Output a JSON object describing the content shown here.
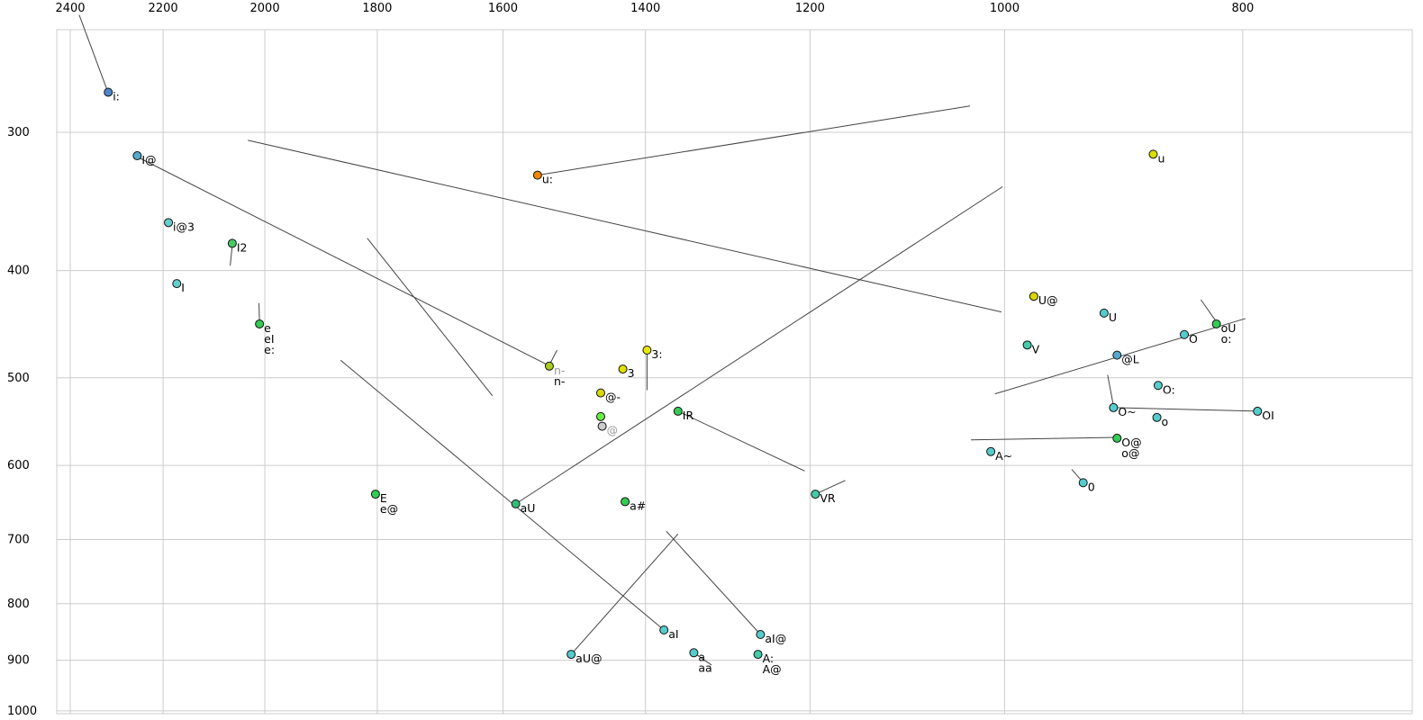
{
  "chart_data": {
    "type": "scatter",
    "title": "",
    "xlabel": "",
    "ylabel": "",
    "x_scale": "log",
    "y_scale": "log",
    "x_reversed": true,
    "y_increases_downward": true,
    "x_ticks": [
      2400,
      2200,
      2000,
      1800,
      1600,
      1400,
      1200,
      1000,
      800
    ],
    "y_ticks": [
      300,
      400,
      500,
      600,
      700,
      800,
      900,
      1000
    ],
    "x_range": [
      2431,
      683
    ],
    "y_range": [
      243,
      1005
    ],
    "grid": true,
    "grid_color": "#cccccc",
    "line_color": "#444444",
    "dot_outline_color": "#111111",
    "points": [
      {
        "f2": 2316,
        "f1": 276,
        "color": "#4d88cc",
        "labels": [
          {
            "t": "i:"
          }
        ]
      },
      {
        "f2": 2254,
        "f1": 315,
        "color": "#55aacc",
        "labels": [
          {
            "t": "I@"
          }
        ]
      },
      {
        "f2": 2189,
        "f1": 362,
        "color": "#66cccc",
        "labels": [
          {
            "t": "i@3"
          }
        ]
      },
      {
        "f2": 2062,
        "f1": 378,
        "color": "#44cc66",
        "labels": [
          {
            "t": "I2"
          }
        ]
      },
      {
        "f2": 2172,
        "f1": 411,
        "color": "#66cccc",
        "labels": [
          {
            "t": "I"
          }
        ]
      },
      {
        "f2": 2010,
        "f1": 447,
        "color": "#33cc55",
        "labels": [
          {
            "t": "e"
          },
          {
            "t": "eI"
          },
          {
            "t": "e:"
          }
        ]
      },
      {
        "f2": 1549,
        "f1": 328,
        "color": "#ee8800",
        "labels": [
          {
            "t": "u:"
          }
        ]
      },
      {
        "f2": 1532,
        "f1": 488,
        "color": "#aacc22",
        "labels": [
          {
            "t": "n-",
            "c": "#999999"
          },
          {
            "t": "n-"
          }
        ]
      },
      {
        "f2": 1430,
        "f1": 491,
        "color": "#e0e000",
        "labels": [
          {
            "t": "3"
          }
        ]
      },
      {
        "f2": 1398,
        "f1": 472,
        "color": "#e8e800",
        "labels": [
          {
            "t": "3:"
          }
        ]
      },
      {
        "f2": 1460,
        "f1": 516,
        "color": "#d8d800",
        "labels": [
          {
            "t": "@-"
          }
        ]
      },
      {
        "f2": 1460,
        "f1": 542,
        "color": "#66ee44",
        "labels": []
      },
      {
        "f2": 1458,
        "f1": 553,
        "color": "#cccccc",
        "labels": [
          {
            "t": "@",
            "c": "#999999"
          }
        ]
      },
      {
        "f2": 1358,
        "f1": 536,
        "color": "#33cc55",
        "labels": [
          {
            "t": "IR"
          }
        ]
      },
      {
        "f2": 1803,
        "f1": 637,
        "color": "#33cc55",
        "labels": [
          {
            "t": "E"
          },
          {
            "t": "e@"
          }
        ]
      },
      {
        "f2": 1581,
        "f1": 650,
        "color": "#33bb77",
        "labels": [
          {
            "t": "aU"
          }
        ]
      },
      {
        "f2": 1427,
        "f1": 647,
        "color": "#33cc55",
        "labels": [
          {
            "t": "a#"
          }
        ]
      },
      {
        "f2": 1194,
        "f1": 637,
        "color": "#44ccaa",
        "labels": [
          {
            "t": "VR"
          }
        ]
      },
      {
        "f2": 1376,
        "f1": 845,
        "color": "#55cccc",
        "labels": [
          {
            "t": "aI"
          }
        ]
      },
      {
        "f2": 1257,
        "f1": 853,
        "color": "#55cccc",
        "labels": [
          {
            "t": "aI@"
          }
        ]
      },
      {
        "f2": 1501,
        "f1": 889,
        "color": "#55cccc",
        "labels": [
          {
            "t": "aU@"
          }
        ]
      },
      {
        "f2": 1338,
        "f1": 886,
        "color": "#55cccc",
        "labels": [
          {
            "t": "a"
          },
          {
            "t": "aa"
          }
        ]
      },
      {
        "f2": 1260,
        "f1": 889,
        "color": "#44ccaa",
        "labels": [
          {
            "t": "A:"
          },
          {
            "t": "A@"
          }
        ]
      },
      {
        "f2": 973,
        "f1": 422,
        "color": "#d8d800",
        "labels": [
          {
            "t": "U@"
          }
        ]
      },
      {
        "f2": 911,
        "f1": 437,
        "color": "#55cccc",
        "labels": [
          {
            "t": "U"
          }
        ]
      },
      {
        "f2": 979,
        "f1": 467,
        "color": "#44ccaa",
        "labels": [
          {
            "t": "V"
          }
        ]
      },
      {
        "f2": 870,
        "f1": 314,
        "color": "#d8e000",
        "labels": [
          {
            "t": "u"
          }
        ]
      },
      {
        "f2": 820,
        "f1": 447,
        "color": "#33cc55",
        "labels": [
          {
            "t": "oU"
          },
          {
            "t": "o:"
          }
        ]
      },
      {
        "f2": 845,
        "f1": 457,
        "color": "#55cccc",
        "labels": [
          {
            "t": "O"
          }
        ]
      },
      {
        "f2": 900,
        "f1": 477,
        "color": "#55aacc",
        "labels": [
          {
            "t": "@L"
          }
        ]
      },
      {
        "f2": 866,
        "f1": 508,
        "color": "#55cccc",
        "labels": [
          {
            "t": "O:"
          }
        ]
      },
      {
        "f2": 903,
        "f1": 532,
        "color": "#55cccc",
        "labels": [
          {
            "t": "O~"
          }
        ]
      },
      {
        "f2": 867,
        "f1": 543,
        "color": "#55cccc",
        "labels": [
          {
            "t": "o"
          }
        ]
      },
      {
        "f2": 789,
        "f1": 536,
        "color": "#55cccc",
        "labels": [
          {
            "t": "OI"
          }
        ]
      },
      {
        "f2": 900,
        "f1": 567,
        "color": "#33cc55",
        "labels": [
          {
            "t": "O@"
          },
          {
            "t": "o@"
          }
        ]
      },
      {
        "f2": 1013,
        "f1": 583,
        "color": "#55cccc",
        "labels": [
          {
            "t": "A~"
          }
        ]
      },
      {
        "f2": 929,
        "f1": 622,
        "color": "#55cccc",
        "labels": [
          {
            "t": "0"
          }
        ]
      }
    ],
    "segments": [
      {
        "f2a": 2380,
        "f1a": 235,
        "f2b": 2318,
        "f1b": 275
      },
      {
        "f2a": 2252,
        "f1a": 316,
        "f2b": 1531,
        "f1b": 488
      },
      {
        "f2a": 2032,
        "f1a": 305,
        "f2b": 1003,
        "f1b": 436
      },
      {
        "f2a": 1549,
        "f1a": 328,
        "f2b": 1033,
        "f1b": 284
      },
      {
        "f2a": 1817,
        "f1a": 374,
        "f2b": 1616,
        "f1b": 519
      },
      {
        "f2a": 2011,
        "f1a": 428,
        "f2b": 2010,
        "f1b": 445
      },
      {
        "f2a": 1581,
        "f1a": 650,
        "f2b": 1002,
        "f1b": 336
      },
      {
        "f2a": 1376,
        "f1a": 845,
        "f2b": 1863,
        "f1b": 482
      },
      {
        "f2a": 1358,
        "f1a": 536,
        "f2b": 1206,
        "f1b": 607
      },
      {
        "f2a": 1194,
        "f1a": 637,
        "f2b": 1161,
        "f1b": 619
      },
      {
        "f2a": 1257,
        "f1a": 853,
        "f2b": 1373,
        "f1b": 688
      },
      {
        "f2a": 1501,
        "f1a": 889,
        "f2b": 1358,
        "f1b": 692
      },
      {
        "f2a": 1338,
        "f1a": 886,
        "f2b": 1316,
        "f1b": 909
      },
      {
        "f2a": 2062,
        "f1a": 380,
        "f2b": 2066,
        "f1b": 396
      },
      {
        "f2a": 1521,
        "f1a": 472,
        "f2b": 1532,
        "f1b": 487
      },
      {
        "f2a": 1398,
        "f1a": 474,
        "f2b": 1398,
        "f1b": 513
      },
      {
        "f2a": 1009,
        "f1a": 517,
        "f2b": 798,
        "f1b": 442
      },
      {
        "f2a": 832,
        "f1a": 425,
        "f2b": 820,
        "f1b": 445
      },
      {
        "f2a": 908,
        "f1a": 497,
        "f2b": 903,
        "f1b": 530
      },
      {
        "f2a": 903,
        "f1a": 532,
        "f2b": 789,
        "f1b": 536
      },
      {
        "f2a": 1032,
        "f1a": 569,
        "f2b": 901,
        "f1b": 566
      },
      {
        "f2a": 939,
        "f1a": 605,
        "f2b": 930,
        "f1b": 620
      }
    ]
  }
}
